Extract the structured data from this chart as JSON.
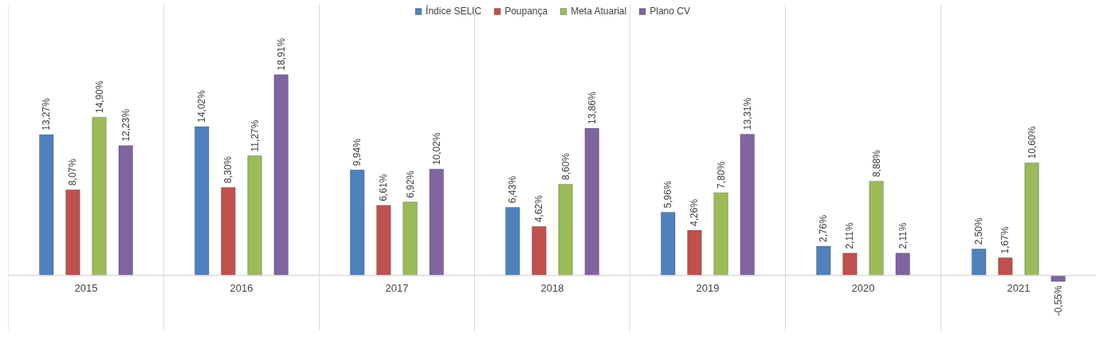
{
  "chart_data": {
    "type": "bar",
    "categories": [
      "2015",
      "2016",
      "2017",
      "2018",
      "2019",
      "2020",
      "2021"
    ],
    "series": [
      {
        "name": "Índice SELIC",
        "color": "#4f81bd",
        "values": [
          13.27,
          14.02,
          9.94,
          6.43,
          5.96,
          2.76,
          2.5
        ],
        "value_labels": [
          "13,27%",
          "14,02%",
          "9,94%",
          "6,43%",
          "5,96%",
          "2,76%",
          "2,50%"
        ]
      },
      {
        "name": "Poupança",
        "color": "#c0504d",
        "values": [
          8.07,
          8.3,
          6.61,
          4.62,
          4.26,
          2.11,
          1.67
        ],
        "value_labels": [
          "8,07%",
          "8,30%",
          "6,61%",
          "4,62%",
          "4,26%",
          "2,11%",
          "1,67%"
        ]
      },
      {
        "name": "Meta Atuarial",
        "color": "#9bbb59",
        "values": [
          14.9,
          11.27,
          6.92,
          8.6,
          7.8,
          8.88,
          10.6
        ],
        "value_labels": [
          "14,90%",
          "11,27%",
          "6,92%",
          "8,60%",
          "7,80%",
          "8,88%",
          "10,60%"
        ]
      },
      {
        "name": "Plano CV",
        "color": "#8064a2",
        "values": [
          12.23,
          18.91,
          10.02,
          13.86,
          13.31,
          2.11,
          -0.55
        ],
        "value_labels": [
          "12,23%",
          "18,91%",
          "10,02%",
          "13,86%",
          "13,31%",
          "2,11%",
          "-0,55%"
        ]
      }
    ],
    "legend": "top"
  }
}
